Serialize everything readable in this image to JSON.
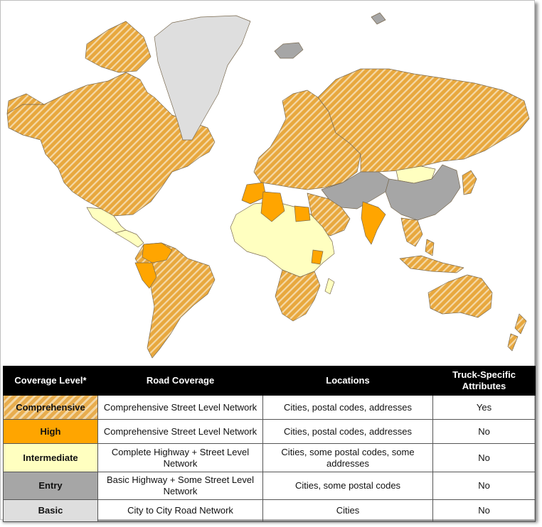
{
  "colors": {
    "comprehensive": "#e8a83e",
    "comprehensive_stripe": "#f4d9a8",
    "high": "#ffa500",
    "intermediate": "#ffffc0",
    "entry": "#a6a6a6",
    "basic": "#dedede",
    "border": "#7a6a50",
    "ocean": "#ffffff"
  },
  "legend": {
    "headers": [
      "Coverage Level*",
      "Road Coverage",
      "Locations",
      "Truck-Specific Attributes"
    ],
    "rows": [
      {
        "level": "Comprehensive",
        "road": "Comprehensive Street Level Network",
        "locations": "Cities, postal codes, addresses",
        "truck": "Yes",
        "swatch": "hatch"
      },
      {
        "level": "High",
        "road": "Comprehensive Street Level Network",
        "locations": "Cities, postal codes, addresses",
        "truck": "No",
        "swatch": "#ffa500"
      },
      {
        "level": "Intermediate",
        "road": "Complete Highway + Street Level Network",
        "locations": "Cities, some postal codes, some addresses",
        "truck": "No",
        "swatch": "#ffffc0"
      },
      {
        "level": "Entry",
        "road": "Basic Highway + Some Street Level Network",
        "locations": "Cities, some postal codes",
        "truck": "No",
        "swatch": "#a6a6a6"
      },
      {
        "level": "Basic",
        "road": "City to City Road Network",
        "locations": "Cities",
        "truck": "No",
        "swatch": "#dedede"
      }
    ]
  },
  "regions": [
    {
      "name": "canada-usa",
      "level": "comprehensive"
    },
    {
      "name": "alaska",
      "level": "comprehensive"
    },
    {
      "name": "greenland",
      "level": "basic"
    },
    {
      "name": "iceland",
      "level": "entry"
    },
    {
      "name": "mexico",
      "level": "intermediate"
    },
    {
      "name": "central-america",
      "level": "intermediate"
    },
    {
      "name": "south-america",
      "level": "comprehensive"
    },
    {
      "name": "venezuela-colombia",
      "level": "high"
    },
    {
      "name": "peru",
      "level": "high"
    },
    {
      "name": "europe",
      "level": "comprehensive"
    },
    {
      "name": "russia",
      "level": "comprehensive"
    },
    {
      "name": "north-africa",
      "level": "intermediate"
    },
    {
      "name": "morocco",
      "level": "high"
    },
    {
      "name": "algeria",
      "level": "high"
    },
    {
      "name": "egypt",
      "level": "high"
    },
    {
      "name": "sub-saharan-africa",
      "level": "intermediate"
    },
    {
      "name": "southern-africa",
      "level": "comprehensive"
    },
    {
      "name": "kenya",
      "level": "high"
    },
    {
      "name": "middle-east",
      "level": "comprehensive"
    },
    {
      "name": "central-asia",
      "level": "entry"
    },
    {
      "name": "mongolia",
      "level": "intermediate"
    },
    {
      "name": "china",
      "level": "entry"
    },
    {
      "name": "india",
      "level": "high"
    },
    {
      "name": "southeast-asia",
      "level": "comprehensive"
    },
    {
      "name": "japan",
      "level": "comprehensive"
    },
    {
      "name": "indonesia",
      "level": "comprehensive"
    },
    {
      "name": "australia",
      "level": "comprehensive"
    },
    {
      "name": "new-zealand",
      "level": "comprehensive"
    },
    {
      "name": "madagascar",
      "level": "intermediate"
    },
    {
      "name": "svalbard",
      "level": "entry"
    }
  ]
}
